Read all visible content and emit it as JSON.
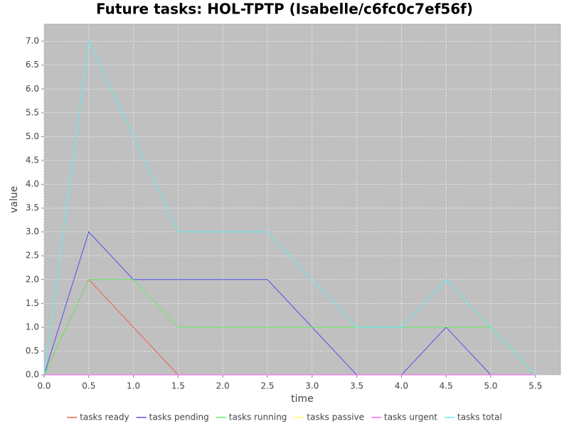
{
  "chart_data": {
    "type": "line",
    "title": "Future tasks: HOL-TPTP (Isabelle/c6fc0c7ef56f)",
    "x_label": "time",
    "y_label": "value",
    "x": [
      0,
      0.5,
      1,
      1.5,
      2,
      2.5,
      3,
      3.5,
      4,
      4.5,
      5,
      5.5
    ],
    "series": [
      {
        "name": "tasks ready",
        "color": "#f06050",
        "values": [
          0,
          2,
          1,
          0,
          0,
          0,
          0,
          0,
          0,
          0,
          0,
          0
        ]
      },
      {
        "name": "tasks pending",
        "color": "#5050f0",
        "values": [
          0,
          3,
          2,
          2,
          2,
          2,
          1,
          0,
          0,
          1,
          0,
          0
        ]
      },
      {
        "name": "tasks running",
        "color": "#60f060",
        "values": [
          0,
          2,
          2,
          1,
          1,
          1,
          1,
          1,
          1,
          1,
          1,
          0
        ]
      },
      {
        "name": "tasks passive",
        "color": "#ffff60",
        "values": [
          0,
          0,
          0,
          0,
          0,
          0,
          0,
          0,
          0,
          0,
          0,
          0
        ]
      },
      {
        "name": "tasks urgent",
        "color": "#ff60ff",
        "values": [
          0,
          0,
          0,
          0,
          0,
          0,
          0,
          0,
          0,
          0,
          0,
          0
        ]
      },
      {
        "name": "tasks total",
        "color": "#60f0f0",
        "values": [
          0,
          7,
          5,
          3,
          3,
          3,
          2,
          1,
          1,
          2,
          1,
          0
        ]
      }
    ],
    "xlim": [
      0,
      5.78
    ],
    "ylim": [
      0,
      7.36
    ],
    "xticks": [
      {
        "value": 0,
        "label": "0.0"
      },
      {
        "value": 0.5,
        "label": "0.5"
      },
      {
        "value": 1,
        "label": "1.0"
      },
      {
        "value": 1.5,
        "label": "1.5"
      },
      {
        "value": 2,
        "label": "2.0"
      },
      {
        "value": 2.5,
        "label": "2.5"
      },
      {
        "value": 3,
        "label": "3.0"
      },
      {
        "value": 3.5,
        "label": "3.5"
      },
      {
        "value": 4,
        "label": "4.0"
      },
      {
        "value": 4.5,
        "label": "4.5"
      },
      {
        "value": 5,
        "label": "5.0"
      },
      {
        "value": 5.5,
        "label": "5.5"
      }
    ],
    "yticks": [
      {
        "value": 0,
        "label": "0.0"
      },
      {
        "value": 0.5,
        "label": "0.5"
      },
      {
        "value": 1,
        "label": "1.0"
      },
      {
        "value": 1.5,
        "label": "1.5"
      },
      {
        "value": 2,
        "label": "2.0"
      },
      {
        "value": 2.5,
        "label": "2.5"
      },
      {
        "value": 3,
        "label": "3.0"
      },
      {
        "value": 3.5,
        "label": "3.5"
      },
      {
        "value": 4,
        "label": "4.0"
      },
      {
        "value": 4.5,
        "label": "4.5"
      },
      {
        "value": 5,
        "label": "5.0"
      },
      {
        "value": 5.5,
        "label": "5.5"
      },
      {
        "value": 6,
        "label": "6.0"
      },
      {
        "value": 6.5,
        "label": "6.5"
      },
      {
        "value": 7,
        "label": "7.0"
      }
    ],
    "grid": true,
    "legend": "bottom",
    "background": "#c0c0c0"
  }
}
